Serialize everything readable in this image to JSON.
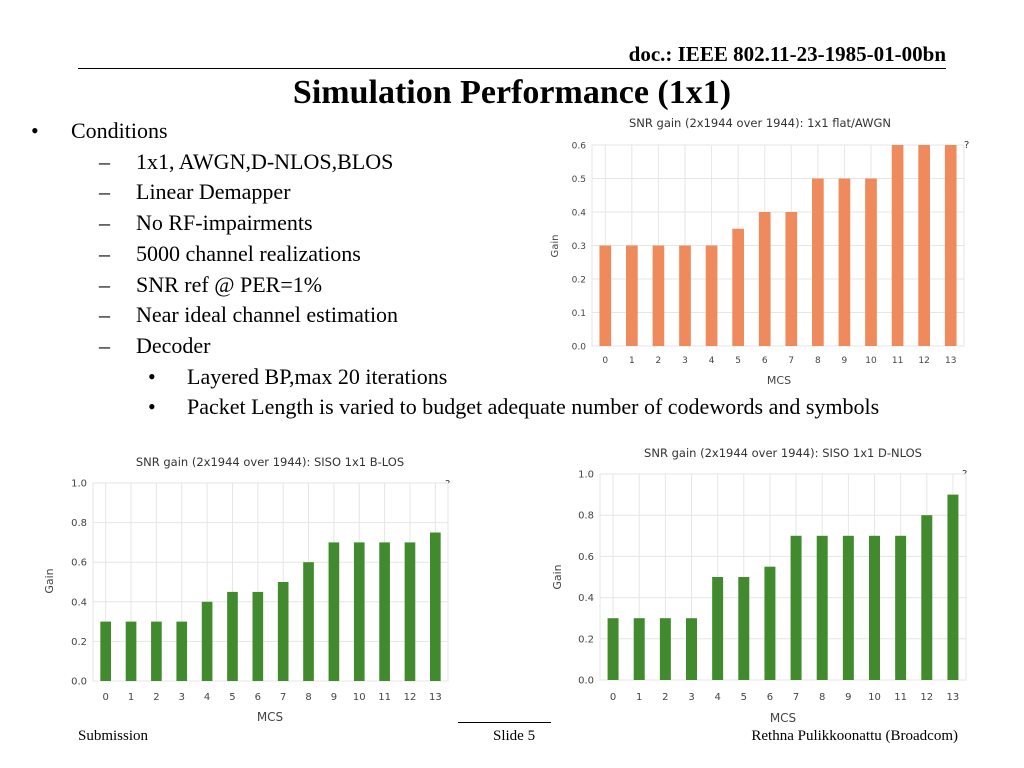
{
  "header": {
    "doc_id": "doc.: IEEE 802.11-23-1985-01-00bn",
    "title": "Simulation Performance (1x1)"
  },
  "conditions": {
    "bullet_glyph": "•",
    "dash_glyph": "–",
    "heading": "Conditions",
    "items": [
      "1x1, AWGN,D-NLOS,BLOS",
      "Linear Demapper",
      "No RF-impairments",
      "5000 channel realizations",
      "SNR ref @ PER=1%",
      "Near ideal channel estimation",
      "Decoder"
    ],
    "decoder_items": [
      "Layered BP,max 20 iterations",
      "Packet Length is varied to budget adequate number of codewords and symbols"
    ]
  },
  "chart_data": [
    {
      "type": "bar",
      "title": "SNR gain (2x1944 over 1944): 1x1 flat/AWGN",
      "xlabel": "MCS",
      "ylabel": "Gain",
      "help_glyph": "?",
      "categories": [
        "0",
        "1",
        "2",
        "3",
        "4",
        "5",
        "6",
        "7",
        "8",
        "9",
        "10",
        "11",
        "12",
        "13"
      ],
      "values": [
        0.3,
        0.3,
        0.3,
        0.3,
        0.3,
        0.35,
        0.4,
        0.4,
        0.5,
        0.5,
        0.5,
        0.6,
        0.6,
        0.6
      ],
      "ylim": [
        0,
        0.6
      ],
      "yticks": [
        "0.0",
        "0.1",
        "0.2",
        "0.3",
        "0.4",
        "0.5",
        "0.6"
      ],
      "color": "#ef8a5c",
      "grid": true
    },
    {
      "type": "bar",
      "title": "SNR gain (2x1944 over 1944): SISO 1x1 B-LOS",
      "xlabel": "MCS",
      "ylabel": "Gain",
      "help_glyph": "?",
      "categories": [
        "0",
        "1",
        "2",
        "3",
        "4",
        "5",
        "6",
        "7",
        "8",
        "9",
        "10",
        "11",
        "12",
        "13"
      ],
      "values": [
        0.3,
        0.3,
        0.3,
        0.3,
        0.4,
        0.45,
        0.45,
        0.5,
        0.6,
        0.7,
        0.7,
        0.7,
        0.7,
        0.75
      ],
      "ylim": [
        0,
        1.0
      ],
      "yticks": [
        "0.0",
        "0.2",
        "0.4",
        "0.6",
        "0.8",
        "1.0"
      ],
      "color": "#418a2e",
      "grid": true
    },
    {
      "type": "bar",
      "title": "SNR gain (2x1944 over 1944): SISO 1x1 D-NLOS",
      "xlabel": "MCS",
      "ylabel": "Gain",
      "help_glyph": "?",
      "categories": [
        "0",
        "1",
        "2",
        "3",
        "4",
        "5",
        "6",
        "7",
        "8",
        "9",
        "10",
        "11",
        "12",
        "13"
      ],
      "values": [
        0.3,
        0.3,
        0.3,
        0.3,
        0.5,
        0.5,
        0.55,
        0.7,
        0.7,
        0.7,
        0.7,
        0.7,
        0.8,
        0.9
      ],
      "ylim": [
        0,
        1.0
      ],
      "yticks": [
        "0.0",
        "0.2",
        "0.4",
        "0.6",
        "0.8",
        "1.0"
      ],
      "color": "#418a2e",
      "grid": true
    }
  ],
  "footer": {
    "left": "Submission",
    "center": "Slide 5",
    "right": "Rethna Pulikkoonattu (Broadcom)"
  }
}
